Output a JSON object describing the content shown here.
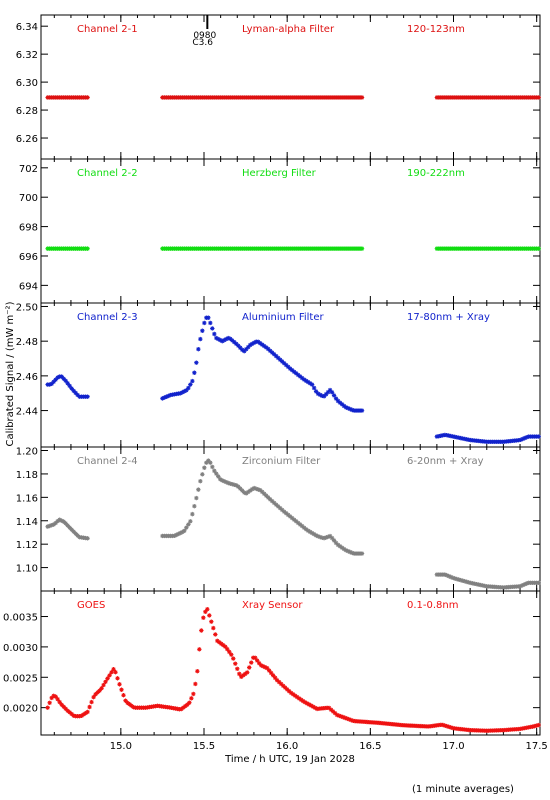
{
  "chart_data": [
    {
      "type": "scatter",
      "panel": "Channel 2-1",
      "labels": [
        "Channel 2-1",
        "Lyman-alpha Filter",
        "120-123nm"
      ],
      "color": "#dd1111",
      "yticks": [
        6.26,
        6.28,
        6.3,
        6.32,
        6.34
      ],
      "ylim": [
        6.245,
        6.348
      ],
      "annotation": {
        "x": 15.52,
        "lines": [
          "0980",
          "C3.6"
        ]
      },
      "series": [
        {
          "x_range": [
            14.56,
            14.8
          ],
          "y": [
            [
              14.56,
              6.289
            ],
            [
              14.8,
              6.289
            ]
          ]
        },
        {
          "x_range": [
            15.25,
            16.45
          ],
          "y": [
            [
              15.25,
              6.289
            ],
            [
              16.45,
              6.289
            ]
          ]
        },
        {
          "x_range": [
            16.9,
            17.52
          ],
          "y": [
            [
              16.9,
              6.289
            ],
            [
              17.52,
              6.289
            ]
          ]
        }
      ]
    },
    {
      "type": "scatter",
      "panel": "Channel 2-2",
      "labels": [
        "Channel 2-2",
        "Herzberg Filter",
        "190-222nm"
      ],
      "color": "#11dd11",
      "yticks": [
        694,
        696,
        698,
        700,
        702
      ],
      "ylim": [
        692.8,
        702.6
      ],
      "series": [
        {
          "x_range": [
            14.56,
            14.8
          ],
          "y": [
            [
              14.56,
              696.5
            ],
            [
              14.8,
              696.5
            ]
          ]
        },
        {
          "x_range": [
            15.25,
            16.45
          ],
          "y": [
            [
              15.25,
              696.5
            ],
            [
              16.45,
              696.5
            ]
          ]
        },
        {
          "x_range": [
            16.9,
            17.52
          ],
          "y": [
            [
              16.9,
              696.5
            ],
            [
              17.52,
              696.5
            ]
          ]
        }
      ]
    },
    {
      "type": "scatter",
      "panel": "Channel 2-3",
      "labels": [
        "Channel 2-3",
        "Aluminium Filter",
        "17-80nm + Xray"
      ],
      "color": "#1122cc",
      "yticks": [
        2.44,
        2.46,
        2.48,
        2.5
      ],
      "ylim": [
        2.419,
        2.502
      ],
      "series": [
        {
          "x_range": [
            14.56,
            14.8
          ],
          "y": [
            [
              14.56,
              2.455
            ],
            [
              14.58,
              2.455
            ],
            [
              14.62,
              2.459
            ],
            [
              14.64,
              2.46
            ],
            [
              14.67,
              2.457
            ],
            [
              14.71,
              2.452
            ],
            [
              14.75,
              2.448
            ],
            [
              14.8,
              2.448
            ]
          ]
        },
        {
          "x_range": [
            15.25,
            16.45
          ],
          "y": [
            [
              15.25,
              2.447
            ],
            [
              15.3,
              2.449
            ],
            [
              15.36,
              2.45
            ],
            [
              15.4,
              2.452
            ],
            [
              15.43,
              2.457
            ],
            [
              15.45,
              2.465
            ],
            [
              15.47,
              2.478
            ],
            [
              15.5,
              2.49
            ],
            [
              15.52,
              2.495
            ],
            [
              15.54,
              2.49
            ],
            [
              15.57,
              2.482
            ],
            [
              15.61,
              2.48
            ],
            [
              15.65,
              2.482
            ],
            [
              15.7,
              2.478
            ],
            [
              15.74,
              2.474
            ],
            [
              15.78,
              2.478
            ],
            [
              15.82,
              2.48
            ],
            [
              15.88,
              2.476
            ],
            [
              15.95,
              2.47
            ],
            [
              16.02,
              2.464
            ],
            [
              16.1,
              2.458
            ],
            [
              16.15,
              2.455
            ],
            [
              16.18,
              2.45
            ],
            [
              16.22,
              2.448
            ],
            [
              16.26,
              2.452
            ],
            [
              16.3,
              2.446
            ],
            [
              16.35,
              2.442
            ],
            [
              16.4,
              2.44
            ],
            [
              16.45,
              2.44
            ]
          ]
        },
        {
          "x_range": [
            16.9,
            17.52
          ],
          "y": [
            [
              16.9,
              2.425
            ],
            [
              16.95,
              2.426
            ],
            [
              17.0,
              2.425
            ],
            [
              17.1,
              2.423
            ],
            [
              17.2,
              2.422
            ],
            [
              17.3,
              2.422
            ],
            [
              17.4,
              2.423
            ],
            [
              17.45,
              2.425
            ],
            [
              17.52,
              2.425
            ]
          ]
        }
      ]
    },
    {
      "type": "scatter",
      "panel": "Channel 2-4",
      "labels": [
        "Channel 2-4",
        "Zirconium Filter",
        "6-20nm + Xray"
      ],
      "color": "#808080",
      "yticks": [
        1.1,
        1.12,
        1.14,
        1.16,
        1.18,
        1.2
      ],
      "ylim": [
        1.08,
        1.203
      ],
      "series": [
        {
          "x_range": [
            14.56,
            14.8
          ],
          "y": [
            [
              14.56,
              1.135
            ],
            [
              14.6,
              1.137
            ],
            [
              14.63,
              1.141
            ],
            [
              14.66,
              1.139
            ],
            [
              14.7,
              1.133
            ],
            [
              14.75,
              1.126
            ],
            [
              14.8,
              1.125
            ]
          ]
        },
        {
          "x_range": [
            15.25,
            16.45
          ],
          "y": [
            [
              15.25,
              1.127
            ],
            [
              15.32,
              1.127
            ],
            [
              15.38,
              1.131
            ],
            [
              15.42,
              1.14
            ],
            [
              15.45,
              1.157
            ],
            [
              15.48,
              1.175
            ],
            [
              15.51,
              1.189
            ],
            [
              15.53,
              1.192
            ],
            [
              15.56,
              1.183
            ],
            [
              15.6,
              1.175
            ],
            [
              15.65,
              1.172
            ],
            [
              15.7,
              1.17
            ],
            [
              15.75,
              1.163
            ],
            [
              15.8,
              1.168
            ],
            [
              15.84,
              1.166
            ],
            [
              15.9,
              1.158
            ],
            [
              15.98,
              1.148
            ],
            [
              16.05,
              1.14
            ],
            [
              16.12,
              1.132
            ],
            [
              16.18,
              1.127
            ],
            [
              16.22,
              1.125
            ],
            [
              16.26,
              1.127
            ],
            [
              16.3,
              1.12
            ],
            [
              16.35,
              1.115
            ],
            [
              16.4,
              1.112
            ],
            [
              16.45,
              1.112
            ]
          ]
        },
        {
          "x_range": [
            16.9,
            17.52
          ],
          "y": [
            [
              16.9,
              1.094
            ],
            [
              16.95,
              1.094
            ],
            [
              17.0,
              1.091
            ],
            [
              17.1,
              1.087
            ],
            [
              17.2,
              1.084
            ],
            [
              17.3,
              1.083
            ],
            [
              17.4,
              1.084
            ],
            [
              17.45,
              1.087
            ],
            [
              17.52,
              1.087
            ]
          ]
        }
      ]
    },
    {
      "type": "scatter",
      "panel": "GOES",
      "labels": [
        "GOES",
        "Xray Sensor",
        "0.1-0.8nm"
      ],
      "color": "#ee1111",
      "yticks": [
        "0.0020",
        "0.0025",
        "0.0030",
        "0.0035"
      ],
      "ylim": [
        0.00155,
        0.00392
      ],
      "xlim": [
        14.52,
        17.52
      ],
      "xticks": [
        "15.0",
        "15.5",
        "16.0",
        "16.5",
        "17.0",
        "17.5"
      ],
      "xlabel": "Time / h UTC, 19 Jan 2028",
      "series": [
        {
          "x_range": [
            14.56,
            17.52
          ],
          "y": [
            [
              14.56,
              0.002
            ],
            [
              14.59,
              0.0022
            ],
            [
              14.61,
              0.00218
            ],
            [
              14.64,
              0.00206
            ],
            [
              14.68,
              0.00195
            ],
            [
              14.72,
              0.00186
            ],
            [
              14.76,
              0.00186
            ],
            [
              14.8,
              0.00193
            ],
            [
              14.84,
              0.0022
            ],
            [
              14.88,
              0.0023
            ],
            [
              14.92,
              0.00248
            ],
            [
              14.96,
              0.00265
            ],
            [
              14.99,
              0.0024
            ],
            [
              15.03,
              0.0021
            ],
            [
              15.08,
              0.002
            ],
            [
              15.15,
              0.002
            ],
            [
              15.22,
              0.00203
            ],
            [
              15.3,
              0.002
            ],
            [
              15.36,
              0.00197
            ],
            [
              15.41,
              0.00207
            ],
            [
              15.44,
              0.00225
            ],
            [
              15.46,
              0.0026
            ],
            [
              15.48,
              0.0032
            ],
            [
              15.5,
              0.00355
            ],
            [
              15.52,
              0.00362
            ],
            [
              15.54,
              0.00345
            ],
            [
              15.58,
              0.0031
            ],
            [
              15.63,
              0.003
            ],
            [
              15.67,
              0.00285
            ],
            [
              15.72,
              0.0025
            ],
            [
              15.76,
              0.00258
            ],
            [
              15.8,
              0.00285
            ],
            [
              15.84,
              0.0027
            ],
            [
              15.88,
              0.00265
            ],
            [
              15.94,
              0.00245
            ],
            [
              16.02,
              0.00225
            ],
            [
              16.1,
              0.0021
            ],
            [
              16.18,
              0.00198
            ],
            [
              16.25,
              0.002
            ],
            [
              16.3,
              0.00188
            ],
            [
              16.4,
              0.00178
            ],
            [
              16.55,
              0.00175
            ],
            [
              16.7,
              0.00171
            ],
            [
              16.85,
              0.00169
            ],
            [
              16.93,
              0.00172
            ],
            [
              17.0,
              0.00166
            ],
            [
              17.1,
              0.00163
            ],
            [
              17.2,
              0.00162
            ],
            [
              17.3,
              0.00163
            ],
            [
              17.4,
              0.00165
            ],
            [
              17.48,
              0.00169
            ],
            [
              17.52,
              0.00172
            ]
          ]
        }
      ]
    }
  ],
  "ylabel": "Calibrated Signal / (mW m⁻²)",
  "footer": "(1 minute averages)"
}
